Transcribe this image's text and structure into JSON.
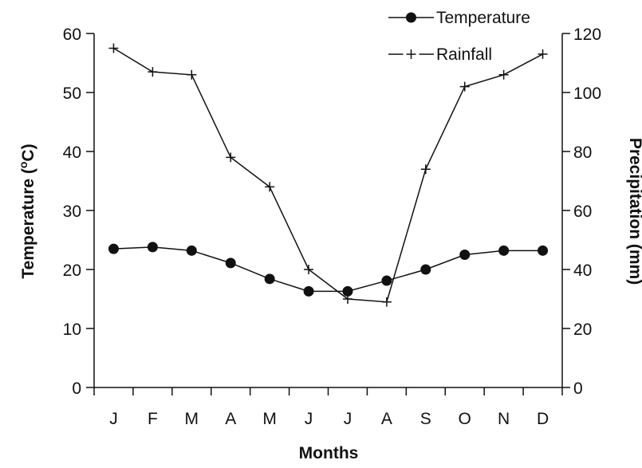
{
  "chart_data": {
    "type": "line",
    "categories": [
      "J",
      "F",
      "M",
      "A",
      "M",
      "J",
      "J",
      "A",
      "S",
      "O",
      "N",
      "D"
    ],
    "xlabel": "Months",
    "ylabel_left": "Temperature (",
    "ylabel_left_sup": "o",
    "ylabel_left_tail": "C)",
    "ylabel_right": "Precipitation (mm)",
    "y_left": {
      "lim": [
        0,
        60
      ],
      "ticks": [
        0,
        10,
        20,
        30,
        40,
        50,
        60
      ]
    },
    "y_right": {
      "lim": [
        0,
        120
      ],
      "ticks": [
        0,
        20,
        40,
        60,
        80,
        100,
        120
      ]
    },
    "grid": false,
    "legend_position": "top-right",
    "series": [
      {
        "name": "Temperature",
        "axis": "left",
        "marker": "filled-circle",
        "line_style": "solid",
        "color": "#111111",
        "values": [
          23.5,
          23.8,
          23.2,
          21.1,
          18.4,
          16.3,
          16.3,
          18.1,
          20.0,
          22.5,
          23.2,
          23.2
        ]
      },
      {
        "name": "Rainfall",
        "axis": "right",
        "marker": "plus",
        "line_style": "solid",
        "color": "#111111",
        "values": [
          115,
          107,
          106,
          78,
          68,
          40,
          30,
          29,
          74,
          102,
          106,
          113
        ]
      }
    ]
  }
}
